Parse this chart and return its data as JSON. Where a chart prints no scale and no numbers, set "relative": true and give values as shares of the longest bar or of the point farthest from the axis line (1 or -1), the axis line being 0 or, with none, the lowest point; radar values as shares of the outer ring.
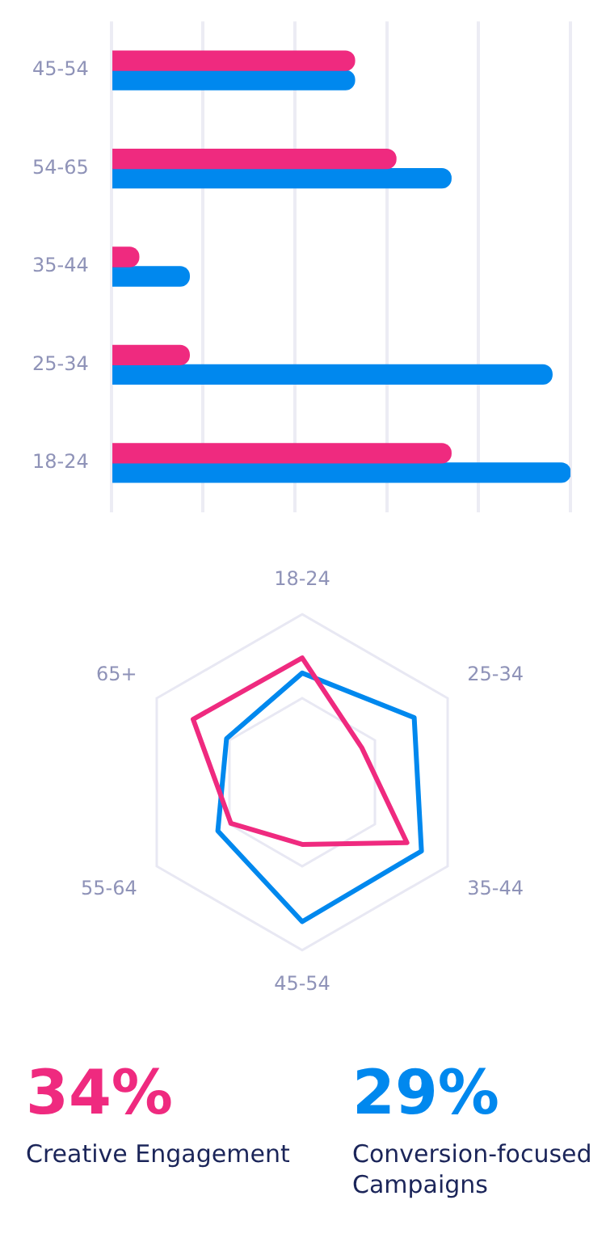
{
  "chart_data": [
    {
      "type": "bar",
      "orientation": "horizontal",
      "relative": true,
      "grid": "x",
      "categories": [
        "45-54",
        "54-65",
        "35-44",
        "25-34",
        "18-24"
      ],
      "series": [
        {
          "color": "#ef2a7f",
          "values": [
            0.53,
            0.62,
            0.06,
            0.17,
            0.74
          ]
        },
        {
          "color": "#0088ee",
          "values": [
            0.53,
            0.74,
            0.17,
            0.96,
            1
          ]
        }
      ]
    },
    {
      "type": "radar",
      "relative": true,
      "marker": "none",
      "categories": [
        "18-24",
        "25-34",
        "35-44",
        "45-54",
        "55-64",
        "65+"
      ],
      "series": [
        {
          "color": "#ef2a7f",
          "values": [
            0.74,
            0.41,
            0.72,
            0.37,
            0.49,
            0.75
          ]
        },
        {
          "color": "#0088ee",
          "values": [
            0.65,
            0.77,
            0.82,
            0.83,
            0.58,
            0.52
          ]
        }
      ]
    },
    {
      "type": "other",
      "annotations": [
        "34%",
        "Creative Engagement",
        "29%",
        "Conversion-focused Campaigns"
      ]
    }
  ]
}
